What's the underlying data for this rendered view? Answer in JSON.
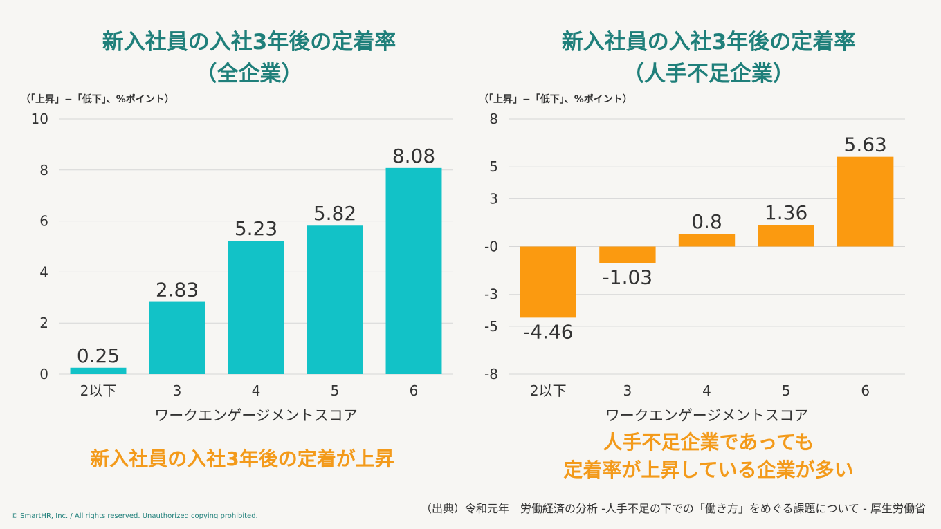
{
  "chart_data": [
    {
      "type": "bar",
      "title_line1": "新入社員の入社3年後の定着率",
      "title_line2": "（全企業）",
      "unit_note": "（「上昇」−「低下」、%ポイント）",
      "xlabel": "ワークエンゲージメントスコア",
      "categories": [
        "2以下",
        "3",
        "4",
        "5",
        "6"
      ],
      "values": [
        0.25,
        2.83,
        5.23,
        5.82,
        8.08
      ],
      "value_labels": [
        "0.25",
        "2.83",
        "5.23",
        "5.82",
        "8.08"
      ],
      "ylim": [
        0,
        10
      ],
      "yticks": [
        0,
        2,
        4,
        6,
        8,
        10
      ],
      "ytick_labels": [
        "0",
        "2",
        "4",
        "6",
        "8",
        "10"
      ],
      "color": "#12c2c7",
      "conclusion": "新入社員の入社3年後の定着が上昇"
    },
    {
      "type": "bar",
      "title_line1": "新入社員の入社3年後の定着率",
      "title_line2": "（人手不足企業）",
      "unit_note": "（「上昇」−「低下」、%ポイント）",
      "xlabel": "ワークエンゲージメントスコア",
      "categories": [
        "2以下",
        "3",
        "4",
        "5",
        "6"
      ],
      "values": [
        -4.46,
        -1.03,
        0.8,
        1.36,
        5.63
      ],
      "value_labels": [
        "-4.46",
        "-1.03",
        "0.8",
        "1.36",
        "5.63"
      ],
      "ylim": [
        -8,
        8
      ],
      "yticks": [
        -8,
        -5,
        -3,
        0,
        3,
        5,
        8
      ],
      "ytick_labels": [
        "-8",
        "-5",
        "-3",
        "-0",
        "3",
        "5",
        "8"
      ],
      "color": "#fb9a10",
      "conclusion_line1": "人手不足企業であっても",
      "conclusion_line2": "定着率が上昇している企業が多い"
    }
  ],
  "source": "（出典）令和元年　労働経済の分析 -人手不足の下での「働き方」をめぐる課題について - 厚生労働省",
  "copyright": "© SmartHR, Inc. / All rights reserved. Unauthorized copying prohibited."
}
